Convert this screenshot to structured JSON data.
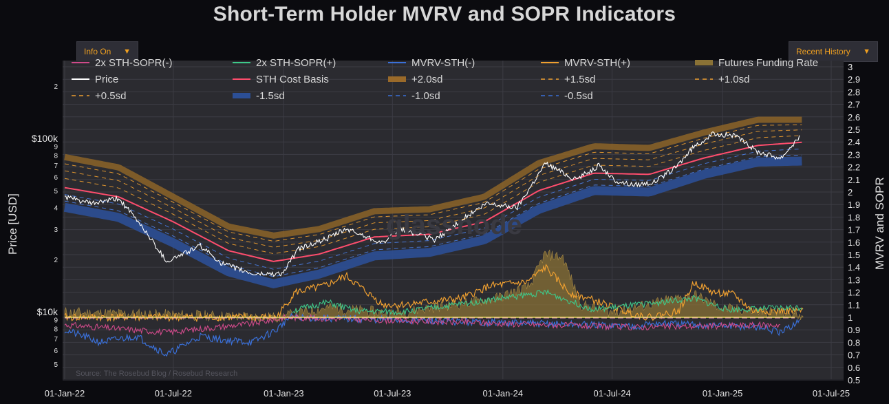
{
  "title": "Short-Term Holder MVRV and SOPR Indicators",
  "controls": {
    "info_dropdown": {
      "label": "Info On",
      "arrow_icon": "caret-down-icon"
    },
    "history_dropdown": {
      "label": "Recent History",
      "arrow_icon": "caret-down-icon"
    }
  },
  "watermark": "glassnode",
  "source_text": "Source: The Rosebud Blog / Rosebud Research",
  "chart_data": {
    "type": "line",
    "title": "Short-Term Holder MVRV and SOPR Indicators",
    "xlabel": "",
    "ylabel_left": "Price [USD]",
    "ylabel_right": "MVRV and SOPR",
    "y_left_scale": "log",
    "y_left_ticks": [
      "$10k",
      "$100k",
      "2",
      "3",
      "4",
      "5",
      "6",
      "7",
      "8",
      "9"
    ],
    "y_left_tick_values": [
      {
        "label": "5",
        "value": 5000
      },
      {
        "label": "6",
        "value": 6000
      },
      {
        "label": "7",
        "value": 7000
      },
      {
        "label": "8",
        "value": 8000
      },
      {
        "label": "9",
        "value": 9000
      },
      {
        "label": "$10k",
        "value": 10000
      },
      {
        "label": "2",
        "value": 20000
      },
      {
        "label": "3",
        "value": 30000
      },
      {
        "label": "4",
        "value": 40000
      },
      {
        "label": "5",
        "value": 50000
      },
      {
        "label": "6",
        "value": 60000
      },
      {
        "label": "7",
        "value": 70000
      },
      {
        "label": "8",
        "value": 80000
      },
      {
        "label": "9",
        "value": 90000
      },
      {
        "label": "$100k",
        "value": 100000
      },
      {
        "label": "2",
        "value": 200000
      }
    ],
    "y_right_ticks": [
      "0.5",
      "0.6",
      "0.7",
      "0.8",
      "0.9",
      "1",
      "1.1",
      "1.2",
      "1.3",
      "1.4",
      "1.5",
      "1.6",
      "1.7",
      "1.8",
      "1.9",
      "2",
      "2.1",
      "2.2",
      "2.3",
      "2.4",
      "2.5",
      "2.6",
      "2.7",
      "2.8",
      "2.9",
      "3"
    ],
    "y_right_range": [
      0.5,
      3
    ],
    "x_ticks": [
      "01-Jan-22",
      "01-Jul-22",
      "01-Jan-23",
      "01-Jul-23",
      "01-Jan-24",
      "01-Jul-24",
      "01-Jan-25",
      "01-Jul-25"
    ],
    "x_range": [
      "2022-01-01",
      "2025-07-01"
    ],
    "legend": [
      {
        "name": "2x STH-SOPR(-)",
        "color": "#d04a8a",
        "style": "line"
      },
      {
        "name": "2x STH-SOPR(+)",
        "color": "#3ec98a",
        "style": "line"
      },
      {
        "name": "MVRV-STH(-)",
        "color": "#3a70d8",
        "style": "line"
      },
      {
        "name": "MVRV-STH(+)",
        "color": "#f0a030",
        "style": "line"
      },
      {
        "name": "Futures Funding Rate",
        "color": "#8a7236",
        "style": "band"
      },
      {
        "name": "Price",
        "color": "#ffffff",
        "style": "line"
      },
      {
        "name": "STH Cost Basis",
        "color": "#ff4d6d",
        "style": "line"
      },
      {
        "name": "+2.0sd",
        "color": "#9a6a2a",
        "style": "band"
      },
      {
        "name": "+1.5sd",
        "color": "#f0a030",
        "style": "dash"
      },
      {
        "name": "+1.0sd",
        "color": "#f0a030",
        "style": "dash"
      },
      {
        "name": "+0.5sd",
        "color": "#f0a030",
        "style": "dash"
      },
      {
        "name": "-1.5sd",
        "color": "#2c4f96",
        "style": "band"
      },
      {
        "name": "-1.0sd",
        "color": "#3a70d8",
        "style": "dash"
      },
      {
        "name": "-0.5sd",
        "color": "#3a70d8",
        "style": "dash"
      }
    ],
    "series": [
      {
        "name": "Price",
        "axis": "left",
        "x": [
          "2022-01-01",
          "2022-02-15",
          "2022-04-01",
          "2022-05-10",
          "2022-06-20",
          "2022-08-15",
          "2022-09-20",
          "2022-11-10",
          "2022-12-30",
          "2023-01-25",
          "2023-03-15",
          "2023-04-15",
          "2023-06-15",
          "2023-07-15",
          "2023-09-10",
          "2023-10-25",
          "2023-12-05",
          "2024-01-25",
          "2024-03-12",
          "2024-05-01",
          "2024-06-10",
          "2024-07-05",
          "2024-08-05",
          "2024-09-10",
          "2024-10-15",
          "2024-11-15",
          "2024-12-17",
          "2025-01-20",
          "2025-02-28",
          "2025-04-08",
          "2025-05-10"
        ],
        "values": [
          46000,
          42000,
          45000,
          31000,
          19500,
          24000,
          19000,
          16500,
          16600,
          23000,
          26500,
          30000,
          25000,
          30000,
          26000,
          34000,
          42000,
          40000,
          72000,
          58000,
          70000,
          57000,
          54000,
          56000,
          68000,
          90000,
          106000,
          104000,
          84000,
          77000,
          103000
        ]
      },
      {
        "name": "STH Cost Basis",
        "axis": "left",
        "x": [
          "2022-01-01",
          "2022-04-01",
          "2022-07-01",
          "2022-10-01",
          "2022-12-15",
          "2023-03-01",
          "2023-06-01",
          "2023-09-01",
          "2023-12-01",
          "2024-03-01",
          "2024-06-01",
          "2024-09-01",
          "2024-12-01",
          "2025-03-01",
          "2025-05-15"
        ],
        "values": [
          52000,
          46000,
          33000,
          22500,
          19500,
          21500,
          27000,
          28000,
          33000,
          50000,
          63000,
          62000,
          77000,
          91000,
          95000
        ]
      },
      {
        "name": "+2.0sd",
        "axis": "left",
        "x": [
          "2022-01-01",
          "2022-04-01",
          "2022-07-01",
          "2022-10-01",
          "2022-12-15",
          "2023-03-01",
          "2023-06-01",
          "2023-09-01",
          "2023-12-01",
          "2024-03-01",
          "2024-06-01",
          "2024-09-01",
          "2024-12-01",
          "2025-03-01",
          "2025-05-15"
        ],
        "values": [
          78000,
          68000,
          46000,
          31000,
          27500,
          30000,
          38000,
          39000,
          46000,
          72000,
          90000,
          88000,
          108000,
          128000,
          128000
        ]
      },
      {
        "name": "-1.5sd",
        "axis": "left",
        "x": [
          "2022-01-01",
          "2022-04-01",
          "2022-07-01",
          "2022-10-01",
          "2022-12-15",
          "2023-03-01",
          "2023-06-01",
          "2023-09-01",
          "2023-12-01",
          "2024-03-01",
          "2024-06-01",
          "2024-09-01",
          "2024-12-01",
          "2025-03-01",
          "2025-05-15"
        ],
        "values": [
          40000,
          35000,
          25000,
          17000,
          14500,
          16500,
          21000,
          22000,
          26000,
          39000,
          50000,
          49000,
          62000,
          73000,
          74000
        ]
      },
      {
        "name": "MVRV-STH(+)",
        "axis": "right",
        "x": [
          "2022-01-01",
          "2022-07-01",
          "2022-12-20",
          "2023-01-20",
          "2023-03-10",
          "2023-04-15",
          "2023-06-15",
          "2023-07-15",
          "2023-10-25",
          "2023-12-10",
          "2024-02-10",
          "2024-03-12",
          "2024-04-20",
          "2024-06-10",
          "2024-07-20",
          "2024-09-01",
          "2024-10-20",
          "2024-11-15",
          "2024-12-15",
          "2025-01-20",
          "2025-02-20",
          "2025-05-15"
        ],
        "values": [
          1.0,
          1.0,
          1.0,
          1.2,
          1.25,
          1.33,
          1.1,
          1.1,
          1.15,
          1.25,
          1.28,
          1.4,
          1.2,
          1.12,
          1.05,
          1.0,
          1.05,
          1.28,
          1.2,
          1.18,
          1.05,
          1.05
        ]
      },
      {
        "name": "MVRV-STH(-)",
        "axis": "right",
        "x": [
          "2022-01-01",
          "2022-03-01",
          "2022-05-01",
          "2022-06-20",
          "2022-08-15",
          "2022-09-20",
          "2022-11-10",
          "2022-12-20",
          "2023-01-10",
          "2024-08-05",
          "2024-09-10",
          "2025-03-10",
          "2025-04-08",
          "2025-05-10"
        ],
        "values": [
          0.9,
          0.8,
          0.85,
          0.7,
          0.85,
          0.82,
          0.8,
          0.9,
          1.0,
          0.93,
          0.95,
          0.92,
          0.87,
          0.98
        ]
      },
      {
        "name": "2x STH-SOPR(+)",
        "axis": "right",
        "x": [
          "2023-01-15",
          "2023-03-15",
          "2023-05-01",
          "2023-07-15",
          "2024-03-12",
          "2024-06-01",
          "2024-11-15",
          "2025-01-10",
          "2025-05-15"
        ],
        "values": [
          1.05,
          1.12,
          1.05,
          1.04,
          1.2,
          1.06,
          1.15,
          1.06,
          1.08
        ]
      },
      {
        "name": "2x STH-SOPR(-)",
        "axis": "right",
        "x": [
          "2022-01-01",
          "2022-06-20",
          "2022-11-10",
          "2023-01-05",
          "2024-08-05",
          "2025-04-08"
        ],
        "values": [
          0.94,
          0.88,
          0.95,
          1.0,
          0.92,
          0.94
        ]
      },
      {
        "name": "Futures Funding Rate",
        "axis": "right",
        "x": [
          "2022-01-01",
          "2022-12-20",
          "2023-03-15",
          "2023-07-01",
          "2023-12-20",
          "2024-02-15",
          "2024-03-10",
          "2024-04-10",
          "2024-05-10",
          "2024-07-01",
          "2024-11-15",
          "2025-01-01",
          "2025-05-15"
        ],
        "values": [
          1.04,
          1.0,
          1.08,
          1.03,
          1.15,
          1.25,
          1.5,
          1.48,
          1.1,
          1.04,
          1.18,
          1.07,
          1.02
        ]
      }
    ],
    "grid": true,
    "legend_placement": "top"
  }
}
